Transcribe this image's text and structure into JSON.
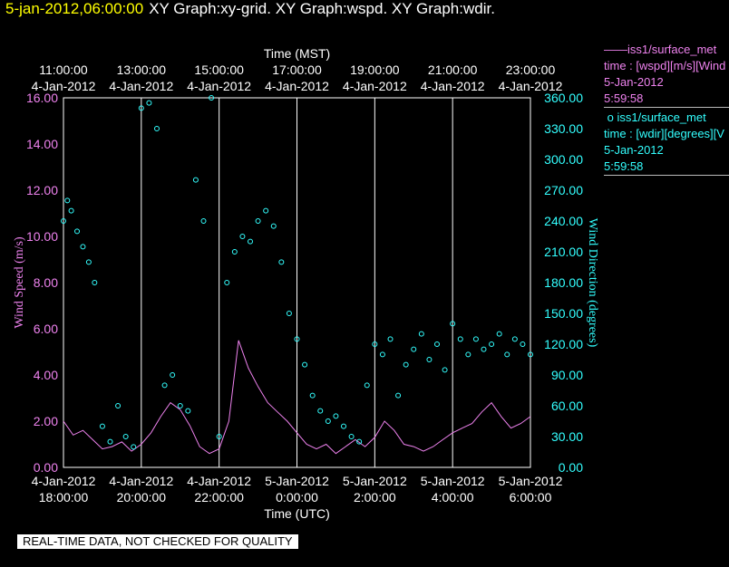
{
  "header": {
    "datetime": "5-jan-2012,06:00:00",
    "graphs": "XY Graph:xy-grid.  XY Graph:wspd.  XY Graph:wdir."
  },
  "legend": {
    "items": [
      {
        "line1": "iss1/surface_met",
        "line2": "time : [wspd][m/s][Wind",
        "line3": "5-Jan-2012",
        "line4": "5:59:58"
      },
      {
        "line1": "iss1/surface_met",
        "line2": "time : [wdir][degrees][V",
        "line3": "5-Jan-2012",
        "line4": "5:59:58"
      }
    ]
  },
  "disclaimer": "REAL-TIME DATA, NOT CHECKED FOR QUALITY",
  "colors": {
    "wspd": "#ee82ee",
    "wdir": "#33ffff",
    "grid": "#ffffff",
    "background": "#000000"
  },
  "chart_data": {
    "type": "scatter",
    "top_axis": {
      "title": "Time (MST)",
      "ticks": [
        {
          "time": "11:00:00",
          "date": "4-Jan-2012"
        },
        {
          "time": "13:00:00",
          "date": "4-Jan-2012"
        },
        {
          "time": "15:00:00",
          "date": "4-Jan-2012"
        },
        {
          "time": "17:00:00",
          "date": "4-Jan-2012"
        },
        {
          "time": "19:00:00",
          "date": "4-Jan-2012"
        },
        {
          "time": "21:00:00",
          "date": "4-Jan-2012"
        },
        {
          "time": "23:00:00",
          "date": "4-Jan-2012"
        }
      ]
    },
    "bottom_axis": {
      "title": "Time (UTC)",
      "ticks": [
        {
          "date": "4-Jan-2012",
          "time": "18:00:00"
        },
        {
          "date": "4-Jan-2012",
          "time": "20:00:00"
        },
        {
          "date": "4-Jan-2012",
          "time": "22:00:00"
        },
        {
          "date": "5-Jan-2012",
          "time": "0:00:00"
        },
        {
          "date": "5-Jan-2012",
          "time": "2:00:00"
        },
        {
          "date": "5-Jan-2012",
          "time": "4:00:00"
        },
        {
          "date": "5-Jan-2012",
          "time": "6:00:00"
        }
      ]
    },
    "left_axis": {
      "title": "Wind Speed (m/s)",
      "ylim": [
        0,
        16
      ],
      "ticks": [
        "0.00",
        "2.00",
        "4.00",
        "6.00",
        "8.00",
        "10.00",
        "12.00",
        "14.00",
        "16.00"
      ]
    },
    "right_axis": {
      "title": "Wind Direction (degrees)",
      "ylim": [
        0,
        360
      ],
      "ticks": [
        "0.00",
        "30.00",
        "60.00",
        "90.00",
        "120.00",
        "150.00",
        "180.00",
        "210.00",
        "240.00",
        "270.00",
        "300.00",
        "330.00",
        "360.00"
      ]
    },
    "x_range_utc_hours": [
      18,
      30
    ],
    "grid": true,
    "series": [
      {
        "variable": "wspd",
        "style": "line",
        "axis": "left",
        "x_utc_hours": [
          18.0,
          18.25,
          18.5,
          18.75,
          19.0,
          19.25,
          19.5,
          19.75,
          20.0,
          20.25,
          20.5,
          20.75,
          21.0,
          21.25,
          21.5,
          21.75,
          22.0,
          22.25,
          22.5,
          22.75,
          23.0,
          23.25,
          23.5,
          23.75,
          24.0,
          24.25,
          24.5,
          24.75,
          25.0,
          25.25,
          25.5,
          25.75,
          26.0,
          26.25,
          26.5,
          26.75,
          27.0,
          27.25,
          27.5,
          27.75,
          28.0,
          28.25,
          28.5,
          28.75,
          29.0,
          29.25,
          29.5,
          29.75,
          30.0
        ],
        "values": [
          2.0,
          1.4,
          1.6,
          1.2,
          0.8,
          0.9,
          1.1,
          0.7,
          1.0,
          1.5,
          2.2,
          2.8,
          2.5,
          1.8,
          0.9,
          0.6,
          0.8,
          2.0,
          5.5,
          4.3,
          3.5,
          2.8,
          2.4,
          2.0,
          1.5,
          1.0,
          0.8,
          1.0,
          0.6,
          0.9,
          1.2,
          0.9,
          1.3,
          2.0,
          1.6,
          1.0,
          0.9,
          0.7,
          0.9,
          1.2,
          1.5,
          1.7,
          1.9,
          2.4,
          2.8,
          2.2,
          1.7,
          1.9,
          2.2
        ]
      },
      {
        "variable": "wdir",
        "style": "scatter",
        "axis": "right",
        "x_utc_hours": [
          18.0,
          18.1,
          18.2,
          18.35,
          18.5,
          18.65,
          18.8,
          19.0,
          19.2,
          19.4,
          19.6,
          19.8,
          20.0,
          20.2,
          20.4,
          20.6,
          20.8,
          21.0,
          21.2,
          21.4,
          21.6,
          21.8,
          22.0,
          22.2,
          22.4,
          22.6,
          22.8,
          23.0,
          23.2,
          23.4,
          23.6,
          23.8,
          24.0,
          24.2,
          24.4,
          24.6,
          24.8,
          25.0,
          25.2,
          25.4,
          25.6,
          25.8,
          26.0,
          26.2,
          26.4,
          26.6,
          26.8,
          27.0,
          27.2,
          27.4,
          27.6,
          27.8,
          28.0,
          28.2,
          28.4,
          28.6,
          28.8,
          29.0,
          29.2,
          29.4,
          29.6,
          29.8,
          30.0
        ],
        "values": [
          240,
          260,
          250,
          230,
          215,
          200,
          180,
          40,
          25,
          60,
          30,
          20,
          350,
          355,
          330,
          80,
          90,
          60,
          55,
          280,
          240,
          360,
          30,
          180,
          210,
          225,
          220,
          240,
          250,
          235,
          200,
          150,
          125,
          100,
          70,
          55,
          45,
          50,
          40,
          30,
          25,
          80,
          120,
          110,
          125,
          70,
          100,
          115,
          130,
          105,
          120,
          95,
          140,
          125,
          110,
          125,
          115,
          120,
          130,
          110,
          125,
          120,
          110
        ]
      }
    ]
  }
}
